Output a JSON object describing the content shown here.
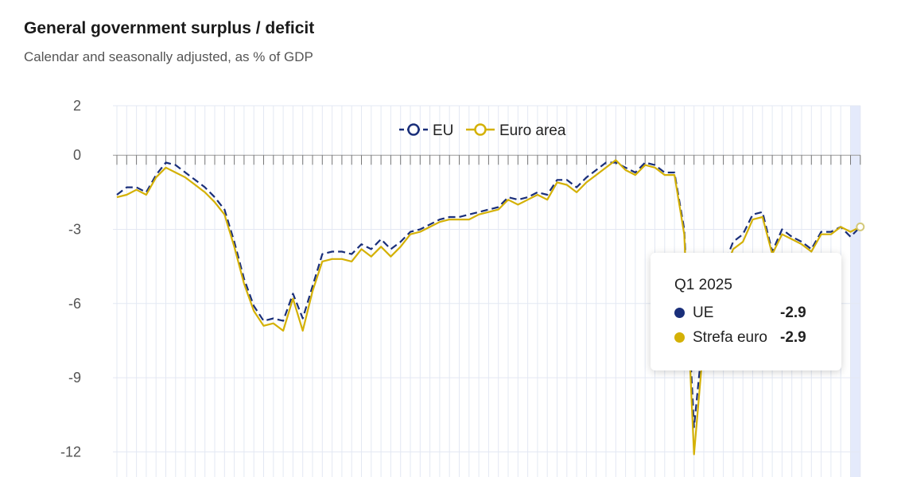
{
  "chart_title": "General government surplus / deficit",
  "chart_subtitle": "Calendar and seasonally adjusted, as % of GDP",
  "colors": {
    "eu": "#1a2f7a",
    "euro_area": "#d4b106",
    "grid": "#e3e8f3",
    "highlight": "#e4eafb"
  },
  "tooltip": {
    "period": "Q1 2025",
    "rows": [
      {
        "name": "UE",
        "value": "-2.9",
        "color": "#1a2f7a"
      },
      {
        "name": "Strefa euro",
        "value": "-2.9",
        "color": "#d4b106"
      }
    ]
  },
  "chart_data": {
    "type": "line",
    "title": "General government surplus / deficit",
    "subtitle": "Calendar and seasonally adjusted, as % of GDP",
    "ylim": [
      -13,
      2
    ],
    "yticks": [
      2,
      0,
      -3,
      -6,
      -9,
      -12
    ],
    "grid": true,
    "legend_position": "top-center",
    "series": [
      {
        "name": "EU",
        "style": "dashed",
        "values": [
          -1.6,
          -1.3,
          -1.3,
          -1.5,
          -0.8,
          -0.3,
          -0.4,
          -0.7,
          -1.0,
          -1.3,
          -1.7,
          -2.2,
          -3.5,
          -5.0,
          -6.1,
          -6.7,
          -6.6,
          -6.7,
          -5.6,
          -6.6,
          -5.3,
          -4.0,
          -3.9,
          -3.9,
          -4.0,
          -3.6,
          -3.8,
          -3.4,
          -3.8,
          -3.5,
          -3.1,
          -3.0,
          -2.8,
          -2.6,
          -2.5,
          -2.5,
          -2.4,
          -2.3,
          -2.2,
          -2.1,
          -1.7,
          -1.8,
          -1.7,
          -1.5,
          -1.6,
          -1.0,
          -1.0,
          -1.3,
          -0.9,
          -0.6,
          -0.3,
          -0.3,
          -0.5,
          -0.7,
          -0.3,
          -0.4,
          -0.7,
          -0.7,
          -3.0,
          -11.0,
          -7.0,
          -5.5,
          -4.5,
          -3.5,
          -3.2,
          -2.4,
          -2.3,
          -3.9,
          -3.0,
          -3.3,
          -3.5,
          -3.8,
          -3.1,
          -3.1,
          -2.9,
          -3.3,
          -2.9
        ]
      },
      {
        "name": "Euro area",
        "style": "solid",
        "values": [
          -1.7,
          -1.6,
          -1.4,
          -1.6,
          -0.9,
          -0.5,
          -0.7,
          -0.9,
          -1.2,
          -1.5,
          -1.9,
          -2.4,
          -3.7,
          -5.2,
          -6.3,
          -6.9,
          -6.8,
          -7.1,
          -5.8,
          -7.1,
          -5.5,
          -4.3,
          -4.2,
          -4.2,
          -4.3,
          -3.8,
          -4.1,
          -3.7,
          -4.1,
          -3.7,
          -3.2,
          -3.1,
          -2.9,
          -2.7,
          -2.6,
          -2.6,
          -2.6,
          -2.4,
          -2.3,
          -2.2,
          -1.8,
          -2.0,
          -1.8,
          -1.6,
          -1.8,
          -1.1,
          -1.2,
          -1.5,
          -1.1,
          -0.8,
          -0.5,
          -0.2,
          -0.6,
          -0.8,
          -0.4,
          -0.5,
          -0.8,
          -0.8,
          -3.2,
          -12.1,
          -7.5,
          -5.8,
          -4.8,
          -3.8,
          -3.5,
          -2.6,
          -2.5,
          -4.0,
          -3.2,
          -3.4,
          -3.6,
          -3.9,
          -3.2,
          -3.2,
          -2.9,
          -3.1,
          -2.9
        ]
      }
    ]
  }
}
